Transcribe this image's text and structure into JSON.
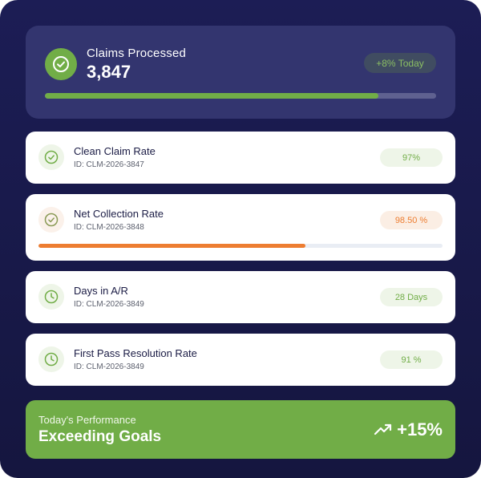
{
  "summary": {
    "title": "Claims Processed",
    "count": "3,847",
    "delta": "+8% Today",
    "progress": 0.852
  },
  "metrics": [
    {
      "name": "Clean Claim Rate",
      "id": "ID: CLM-2026-3847",
      "value": "97%",
      "status": "green",
      "icon": "check-circle-icon"
    },
    {
      "name": "Net Collection Rate",
      "id": "ID: CLM-2026-3848",
      "value": "98.50 %",
      "status": "orange",
      "icon": "check-circle-icon",
      "progress": 0.66
    },
    {
      "name": "Days in A/R",
      "id": "ID: CLM-2026-3849",
      "value": "28 Days",
      "status": "green",
      "icon": "clock-icon"
    },
    {
      "name": "First Pass Resolution Rate",
      "id": "ID: CLM-2026-3849",
      "value": "91 %",
      "status": "green",
      "icon": "clock-icon"
    }
  ],
  "performance": {
    "label": "Today's Performance",
    "headline": "Exceeding Goals",
    "change": "+15%",
    "icon": "trending-up-icon"
  },
  "colors": {
    "background": "#1c1d55",
    "summary_card": "#33356f",
    "accent_green": "#71ad47",
    "accent_orange": "#ed7d31"
  }
}
